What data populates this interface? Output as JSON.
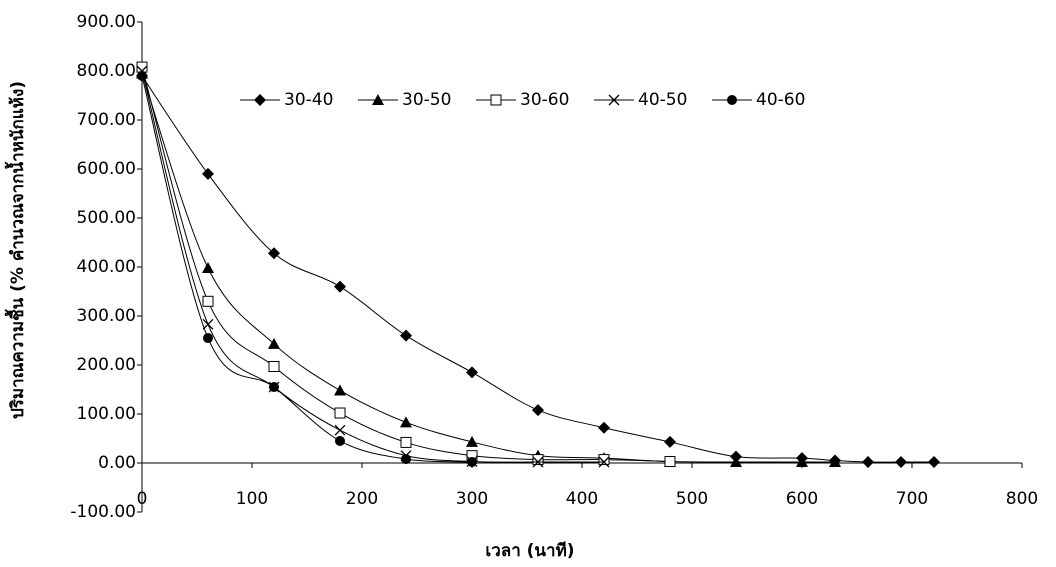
{
  "chart_data": {
    "type": "line",
    "x_label": "เวลา (นาที)",
    "y_label": "ปริมาณความชื้น (% คำนวณจากน้ำหนักแห้ง)",
    "xlim": [
      0,
      800
    ],
    "xticks": [
      0,
      100,
      200,
      300,
      400,
      500,
      600,
      700,
      800
    ],
    "ylim": [
      -100,
      900
    ],
    "yticks": [
      {
        "value": -100,
        "label": "-100.00"
      },
      {
        "value": 0,
        "label": "0.00"
      },
      {
        "value": 100,
        "label": "100.00"
      },
      {
        "value": 200,
        "label": "200.00"
      },
      {
        "value": 300,
        "label": "300.00"
      },
      {
        "value": 400,
        "label": "400.00"
      },
      {
        "value": 500,
        "label": "500.00"
      },
      {
        "value": 600,
        "label": "600.00"
      },
      {
        "value": 700,
        "label": "700.00"
      },
      {
        "value": 800,
        "label": "800.00"
      },
      {
        "value": 900,
        "label": "900.00"
      }
    ],
    "grid": false,
    "legend": "top",
    "series": [
      {
        "name": "30-40",
        "color": "#000000",
        "marker": "diamond",
        "x": [
          0,
          60,
          120,
          180,
          240,
          300,
          360,
          420,
          480,
          540,
          600,
          630,
          660,
          690,
          720
        ],
        "values": [
          790,
          590,
          428,
          360,
          260,
          185,
          108,
          72,
          43,
          13,
          10,
          5,
          2,
          2,
          2
        ]
      },
      {
        "name": "30-50",
        "color": "#000000",
        "marker": "triangle",
        "x": [
          0,
          60,
          120,
          180,
          240,
          300,
          360,
          420,
          480,
          540,
          600,
          630
        ],
        "values": [
          795,
          398,
          243,
          148,
          83,
          43,
          15,
          10,
          3,
          2,
          2,
          2
        ]
      },
      {
        "name": "30-60",
        "color": "#000000",
        "marker": "square",
        "x": [
          0,
          60,
          120,
          180,
          240,
          300,
          360,
          420,
          480
        ],
        "values": [
          808,
          330,
          197,
          102,
          42,
          15,
          7,
          7,
          3
        ]
      },
      {
        "name": "40-50",
        "color": "#000000",
        "marker": "cross",
        "x": [
          0,
          60,
          120,
          180,
          240,
          300,
          360,
          420
        ],
        "values": [
          800,
          283,
          155,
          67,
          15,
          3,
          2,
          2
        ]
      },
      {
        "name": "40-60",
        "color": "#000000",
        "marker": "circle",
        "x": [
          0,
          60,
          120,
          180,
          240,
          300
        ],
        "values": [
          790,
          255,
          155,
          45,
          8,
          2
        ]
      }
    ]
  }
}
